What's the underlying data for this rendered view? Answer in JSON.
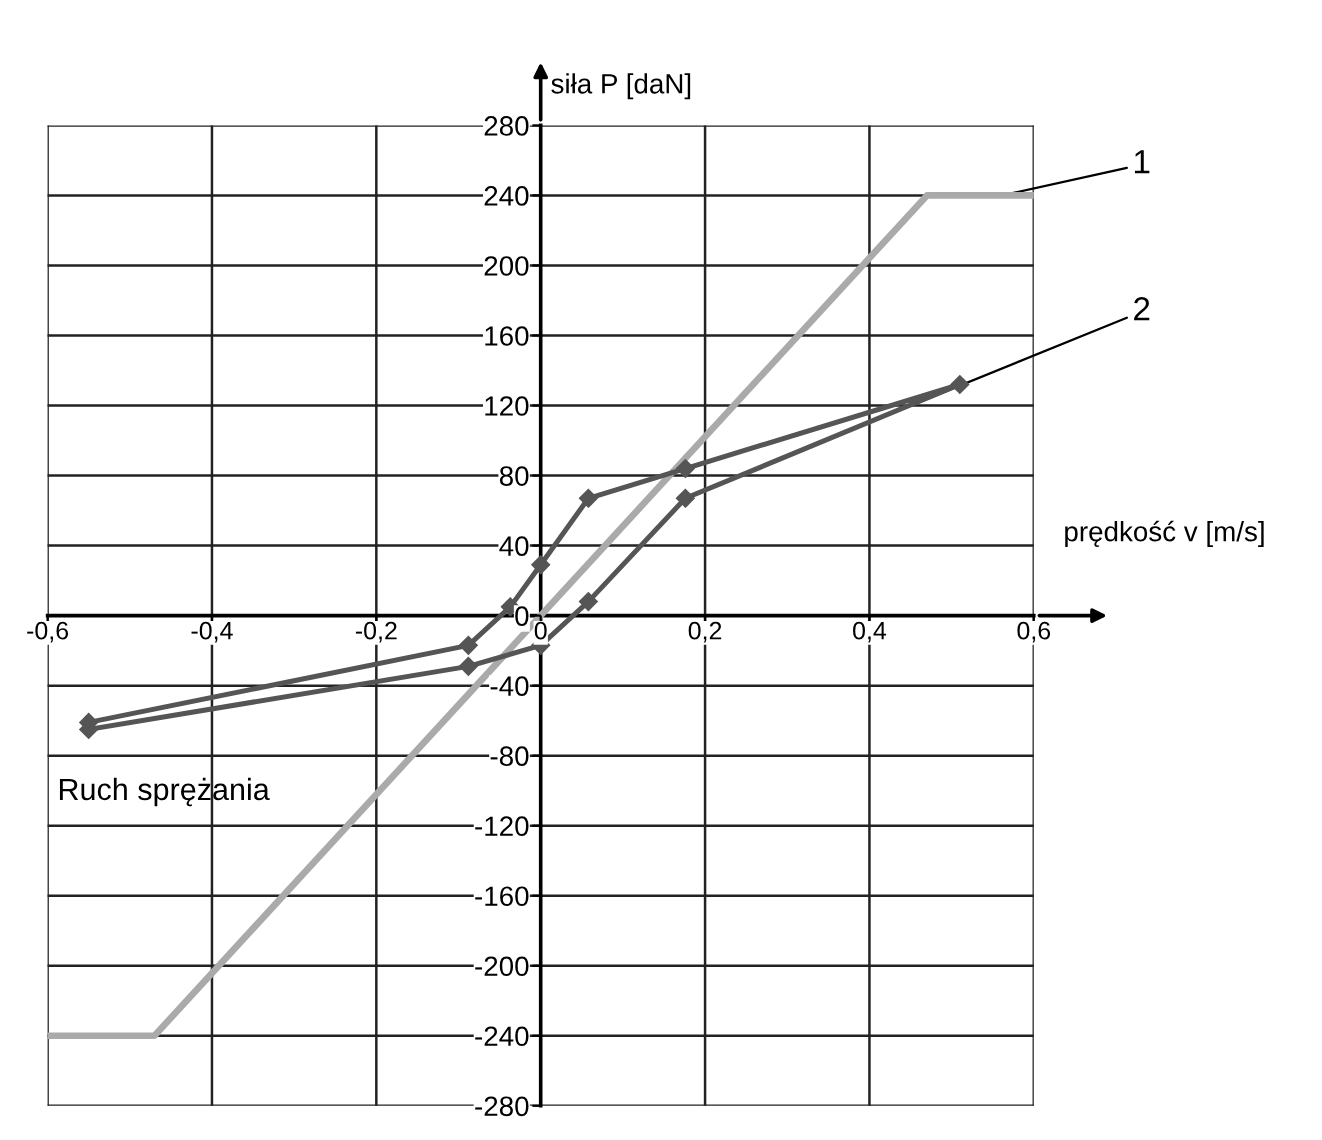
{
  "chart_data": {
    "type": "line",
    "xlabel": "prędkość v [m/s]",
    "ylabel": "siła P [daN]",
    "annotations": [
      "Ruch sprężania"
    ],
    "xlim": [
      -0.6,
      0.6
    ],
    "ylim": [
      -280,
      280
    ],
    "xticks": [
      {
        "value": -0.6,
        "label": "-0,6"
      },
      {
        "value": -0.4,
        "label": "-0,4"
      },
      {
        "value": -0.2,
        "label": "-0,2"
      },
      0,
      {
        "value": 0.2,
        "label": "0,2"
      },
      {
        "value": 0.4,
        "label": "0,4"
      },
      {
        "value": 0.6,
        "label": "0,6"
      }
    ],
    "yticks": [
      -280,
      -240,
      -200,
      -160,
      -120,
      -80,
      -40,
      0,
      40,
      80,
      120,
      160,
      200,
      240,
      280
    ],
    "grid": true,
    "series": [
      {
        "name": "1",
        "color": "#aaaaaa",
        "marker": "none",
        "x": [
          -0.6,
          -0.47,
          0.47,
          0.6
        ],
        "values": [
          -240,
          -240,
          240,
          240
        ]
      },
      {
        "name": "2",
        "color": "#555555",
        "marker": "diamond",
        "x": [
          -0.55,
          -0.088,
          0,
          0.058,
          0.176,
          0.51,
          0.176,
          0.058,
          0,
          -0.037,
          -0.088,
          -0.55
        ],
        "values": [
          -65,
          -29,
          -17,
          8,
          67,
          132,
          84,
          67,
          29,
          5,
          -17,
          -61
        ]
      }
    ]
  }
}
